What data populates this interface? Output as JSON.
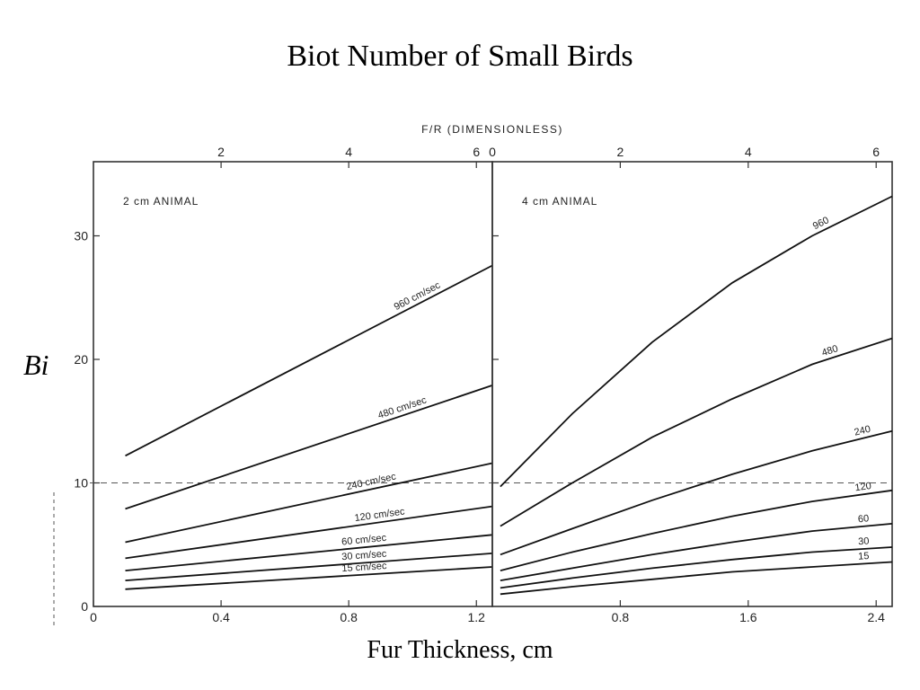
{
  "slide": {
    "title": "Biot Number of Small Birds",
    "y_label": "Bi",
    "x_label": "Fur Thickness, cm"
  },
  "chart_data": [
    {
      "type": "line",
      "title": "2 cm ANIMAL",
      "xlabel": "Fur Thickness, cm",
      "ylabel": "Bi",
      "xlim": [
        0,
        1.25
      ],
      "ylim": [
        0,
        36
      ],
      "x_ticks": [
        0,
        0.4,
        0.8,
        1.2
      ],
      "x_tick_labels": [
        "0",
        "0.4",
        "0.8",
        "1.2"
      ],
      "y_ticks": [
        0,
        10,
        20,
        30
      ],
      "y_tick_labels": [
        "0",
        "10",
        "20",
        "30"
      ],
      "secondary_x": {
        "label": "F/R (DIMENSIONLESS)",
        "ticks": [
          2,
          4,
          6
        ],
        "tick_labels": [
          "2",
          "4",
          "6"
        ],
        "per_fur_cm": 5
      },
      "reference_line_y": 10,
      "series": [
        {
          "name": "960 cm/sec",
          "x": [
            0.1,
            1.25
          ],
          "y": [
            12.2,
            27.6
          ]
        },
        {
          "name": "480 cm/sec",
          "x": [
            0.1,
            1.25
          ],
          "y": [
            7.9,
            17.9
          ]
        },
        {
          "name": "240 cm/sec",
          "x": [
            0.1,
            1.25
          ],
          "y": [
            5.2,
            11.6
          ]
        },
        {
          "name": "120 cm/sec",
          "x": [
            0.1,
            1.25
          ],
          "y": [
            3.9,
            8.1
          ]
        },
        {
          "name": "60 cm/sec",
          "x": [
            0.1,
            1.25
          ],
          "y": [
            2.9,
            5.8
          ]
        },
        {
          "name": "30 cm/sec",
          "x": [
            0.1,
            1.25
          ],
          "y": [
            2.1,
            4.3
          ]
        },
        {
          "name": "15 cm/sec",
          "x": [
            0.1,
            1.25
          ],
          "y": [
            1.4,
            3.2
          ]
        }
      ]
    },
    {
      "type": "line",
      "title": "4 cm ANIMAL",
      "xlabel": "Fur Thickness, cm",
      "ylabel": "Bi",
      "xlim": [
        0,
        2.5
      ],
      "ylim": [
        0,
        36
      ],
      "x_ticks": [
        0.8,
        1.6,
        2.4
      ],
      "x_tick_labels": [
        "0.8",
        "1.6",
        "2.4"
      ],
      "y_ticks": [
        10,
        20,
        30
      ],
      "secondary_x": {
        "label": "F/R (DIMENSIONLESS)",
        "ticks": [
          0,
          2,
          4,
          6
        ],
        "tick_labels": [
          "0",
          "2",
          "4",
          "6"
        ],
        "per_fur_cm": 2.5
      },
      "reference_line_y": 10,
      "series": [
        {
          "name": "960",
          "x": [
            0.05,
            0.5,
            1.0,
            1.5,
            2.0,
            2.5
          ],
          "y": [
            9.7,
            15.6,
            21.4,
            26.2,
            30.0,
            33.2
          ]
        },
        {
          "name": "480",
          "x": [
            0.05,
            0.5,
            1.0,
            1.5,
            2.0,
            2.5
          ],
          "y": [
            6.5,
            10.0,
            13.7,
            16.8,
            19.6,
            21.7
          ]
        },
        {
          "name": "240",
          "x": [
            0.05,
            0.5,
            1.0,
            1.5,
            2.0,
            2.5
          ],
          "y": [
            4.2,
            6.3,
            8.6,
            10.7,
            12.6,
            14.2
          ]
        },
        {
          "name": "120",
          "x": [
            0.05,
            0.5,
            1.0,
            1.5,
            2.0,
            2.5
          ],
          "y": [
            2.9,
            4.4,
            5.9,
            7.3,
            8.5,
            9.4
          ]
        },
        {
          "name": "60",
          "x": [
            0.05,
            0.5,
            1.0,
            1.5,
            2.0,
            2.5
          ],
          "y": [
            2.1,
            3.1,
            4.2,
            5.2,
            6.1,
            6.7
          ]
        },
        {
          "name": "30",
          "x": [
            0.05,
            0.5,
            1.0,
            1.5,
            2.0,
            2.5
          ],
          "y": [
            1.5,
            2.3,
            3.1,
            3.8,
            4.4,
            4.8
          ]
        },
        {
          "name": "15",
          "x": [
            0.05,
            0.5,
            1.0,
            1.5,
            2.0,
            2.5
          ],
          "y": [
            1.0,
            1.6,
            2.2,
            2.8,
            3.2,
            3.6
          ]
        }
      ]
    }
  ]
}
